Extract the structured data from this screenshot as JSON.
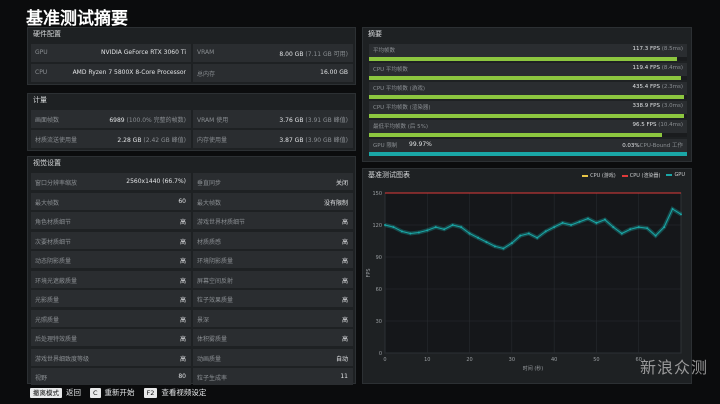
{
  "page_title": "基准测试摘要",
  "hardware": {
    "header": "硬件配置",
    "rows": [
      {
        "left_key": "GPU",
        "left_val": "NVIDIA GeForce RTX 3060 Ti",
        "right_key": "VRAM",
        "right_val": "8.00 GB",
        "right_sub": "(7.11 GB 可用)"
      },
      {
        "left_key": "CPU",
        "left_val": "AMD Ryzen 7 5800X 8-Core Processor",
        "right_key": "总内存",
        "right_val": "16.00 GB",
        "right_sub": ""
      }
    ]
  },
  "stats": {
    "header": "计量",
    "rows": [
      {
        "left_key": "画面帧数",
        "left_val": "6989",
        "left_sub": "(100.0% 完整的帧数)",
        "right_key": "VRAM 使用",
        "right_val": "3.76 GB",
        "right_sub": "(3.91 GB 峰值)"
      },
      {
        "left_key": "材质流送使用量",
        "left_val": "2.28 GB",
        "left_sub": "(2.42 GB 峰值)",
        "right_key": "内存使用量",
        "right_val": "3.87 GB",
        "right_sub": "(3.90 GB 峰值)"
      }
    ]
  },
  "settings": {
    "header": "视觉设置",
    "rows": [
      {
        "k1": "窗口分辨率缩放",
        "v1": "2560x1440 (66.7%)",
        "k2": "垂直同步",
        "v2": "关闭"
      },
      {
        "k1": "最大帧数",
        "v1": "60",
        "k2": "最大帧数",
        "v2": "没有限制"
      },
      {
        "k1": "角色材质细节",
        "v1": "高",
        "k2": "游戏世界材质细节",
        "v2": "高"
      },
      {
        "k1": "次要材质细节",
        "v1": "高",
        "k2": "材质质感",
        "v2": "高"
      },
      {
        "k1": "动态阴影质量",
        "v1": "高",
        "k2": "环境阴影质量",
        "v2": "高"
      },
      {
        "k1": "环境光遮蔽质量",
        "v1": "高",
        "k2": "屏幕空间反射",
        "v2": "高"
      },
      {
        "k1": "光影质量",
        "v1": "高",
        "k2": "粒子效果质量",
        "v2": "高"
      },
      {
        "k1": "光照质量",
        "v1": "高",
        "k2": "景深",
        "v2": "高"
      },
      {
        "k1": "后处理特效质量",
        "v1": "高",
        "k2": "体积雾质量",
        "v2": "高"
      },
      {
        "k1": "游戏世界细致度等级",
        "v1": "高",
        "k2": "动画质量",
        "v2": "自动"
      },
      {
        "k1": "视野",
        "v1": "80",
        "k2": "粒子生成率",
        "v2": "11"
      }
    ]
  },
  "summary": {
    "header": "摘要",
    "rows": [
      {
        "label": "平均帧数",
        "value": "117.3 FPS",
        "sub": "(8.5ms)",
        "fill": 0.97,
        "color": "#8cc63f"
      },
      {
        "label": "CPU 平均帧数",
        "value": "119.4 FPS",
        "sub": "(8.4ms)",
        "fill": 0.98,
        "color": "#8cc63f"
      },
      {
        "label": "CPU 平均帧数 (游戏)",
        "value": "435.4 FPS",
        "sub": "(2.3ms)",
        "fill": 0.99,
        "color": "#8cc63f"
      },
      {
        "label": "CPU 平均帧数 (渲染器)",
        "value": "338.9 FPS",
        "sub": "(3.0ms)",
        "fill": 0.99,
        "color": "#8cc63f"
      },
      {
        "label": "最低平均帧数 (后 5%)",
        "value": "96.5 FPS",
        "sub": "(10.4ms)",
        "fill": 0.92,
        "color": "#8cc63f"
      }
    ],
    "gpu_row": {
      "label": "GPU 限制",
      "pct1": "99.97%",
      "pct2": "0.03%",
      "tag": "CPU-Bound 工作",
      "fill": 0.9997,
      "color": "#1aa7a7"
    }
  },
  "chart": {
    "header": "基准测试图表",
    "legend": [
      {
        "name": "CPU (游戏)",
        "color": "#e8c547"
      },
      {
        "name": "CPU (渲染器)",
        "color": "#e03a3a"
      },
      {
        "name": "GPU",
        "color": "#1aa7a7"
      }
    ],
    "ylabel": "FPS",
    "xlabel": "时间 (秒)"
  },
  "chart_data": {
    "type": "line",
    "title": "基准测试图表",
    "xlabel": "时间 (秒)",
    "ylabel": "FPS",
    "xlim": [
      0,
      70
    ],
    "ylim": [
      0,
      150
    ],
    "x_ticks": [
      0,
      10,
      20,
      30,
      40,
      50,
      60
    ],
    "y_ticks": [
      0,
      30,
      60,
      90,
      120,
      150
    ],
    "grid": true,
    "legend_position": "top-right",
    "reference_lines": [
      {
        "name": "CPU (渲染器)",
        "y": 150,
        "color": "#e03a3a"
      }
    ],
    "series": [
      {
        "name": "GPU",
        "color": "#1aa7a7",
        "x": [
          0,
          2,
          4,
          6,
          8,
          10,
          12,
          14,
          16,
          18,
          20,
          22,
          24,
          26,
          28,
          30,
          32,
          34,
          36,
          38,
          40,
          42,
          44,
          46,
          48,
          50,
          52,
          54,
          56,
          58,
          60,
          62,
          64,
          66,
          68,
          70
        ],
        "y": [
          120,
          118,
          114,
          112,
          113,
          115,
          118,
          116,
          120,
          118,
          112,
          108,
          104,
          100,
          98,
          103,
          110,
          112,
          108,
          114,
          118,
          122,
          120,
          123,
          126,
          122,
          125,
          118,
          112,
          116,
          118,
          117,
          110,
          118,
          135,
          130
        ]
      }
    ]
  },
  "footer": [
    {
      "key": "撤离模式",
      "label": "返回"
    },
    {
      "key": "C",
      "label": "重新开始"
    },
    {
      "key": "F2",
      "label": "查看视频设定"
    }
  ],
  "watermark": "新浪众测"
}
